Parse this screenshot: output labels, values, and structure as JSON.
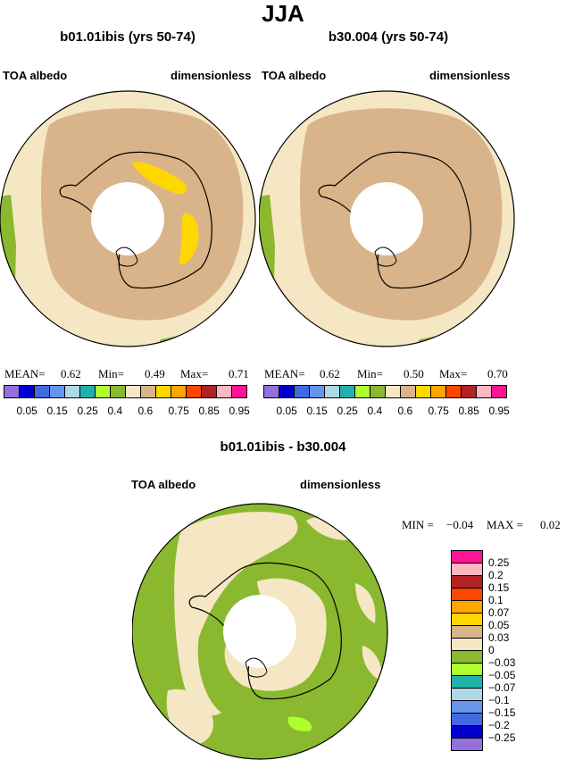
{
  "header": {
    "title": "JJA"
  },
  "panel1": {
    "case": "b01.01ibis (yrs 50-74)",
    "field": "TOA albedo",
    "units": "dimensionless",
    "mean_label": "MEAN=",
    "mean": "0.62",
    "min_label": "Min=",
    "min": "0.49",
    "max_label": "Max=",
    "max": "0.71"
  },
  "panel2": {
    "case": "b30.004 (yrs 50-74)",
    "field": "TOA albedo",
    "units": "dimensionless",
    "mean_label": "MEAN=",
    "mean": "0.62",
    "min_label": "Min=",
    "min": "0.50",
    "max_label": "Max=",
    "max": "0.70"
  },
  "colorbar_top": {
    "colors": [
      "#9370db",
      "#0000cd",
      "#4169e1",
      "#6495ed",
      "#add8e6",
      "#20b2aa",
      "#adff2f",
      "#8ab82f",
      "#f5e6c4",
      "#d9b48a",
      "#ffd700",
      "#ffa500",
      "#ff4500",
      "#b22222",
      "#ffb6c1",
      "#ff1493"
    ],
    "labels": [
      "0.05",
      "0.15",
      "0.25",
      "0.4",
      "0.6",
      "0.75",
      "0.85",
      "0.95"
    ]
  },
  "panel3": {
    "title": "b01.01ibis - b30.004",
    "field": "TOA albedo",
    "units": "dimensionless",
    "min_label": "MIN =",
    "min": "−0.04",
    "max_label": "MAX =",
    "max": "0.02"
  },
  "colorbar_diff": {
    "colors": [
      "#ff1493",
      "#ffb6c1",
      "#b22222",
      "#ff4500",
      "#ffa500",
      "#ffd700",
      "#d9b48a",
      "#f5e6c4",
      "#8ab82f",
      "#adff2f",
      "#20b2aa",
      "#add8e6",
      "#6495ed",
      "#4169e1",
      "#0000cd",
      "#9370db"
    ],
    "labels": [
      "0.25",
      "0.2",
      "0.15",
      "0.1",
      "0.07",
      "0.05",
      "0.03",
      "0",
      "−0.03",
      "−0.05",
      "−0.07",
      "−0.1",
      "−0.15",
      "−0.2",
      "−0.25"
    ]
  },
  "map_colors": {
    "cream": "#f5e6c4",
    "tan": "#d9b48a",
    "gold": "#ffd700",
    "green": "#8ab82f",
    "lightgreen": "#adff2f"
  }
}
